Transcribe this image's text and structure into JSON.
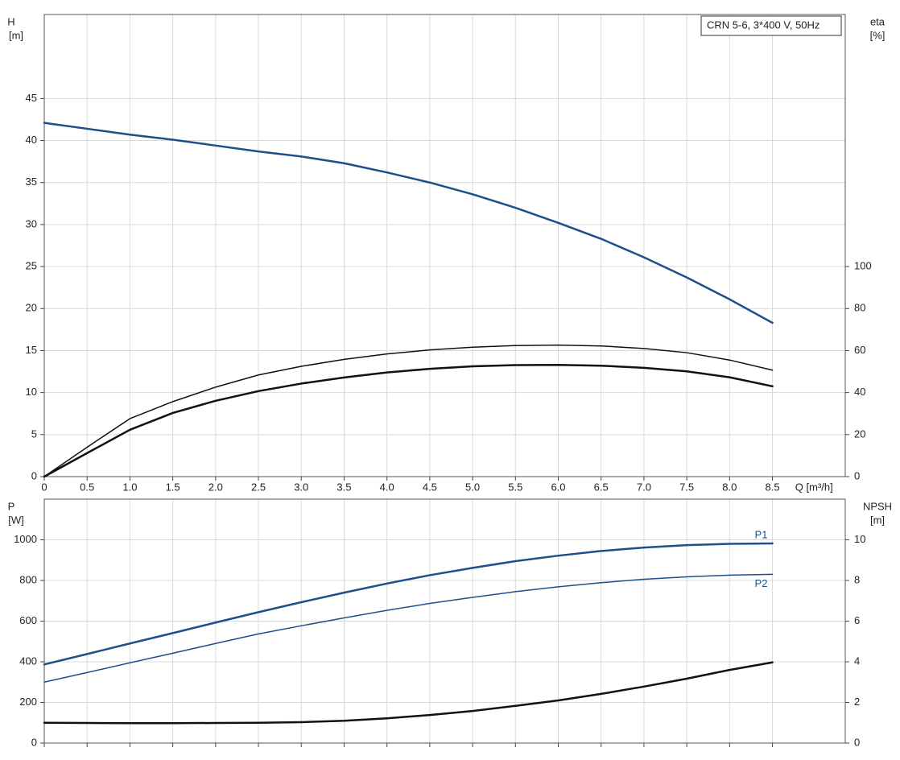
{
  "chart_data": [
    {
      "type": "line",
      "title": "CRN 5-6, 3*400 V, 50Hz",
      "ylabel": "H",
      "yunit": "[m]",
      "y2label": "eta",
      "y2unit": "[%]",
      "xlabel": "Q [m³/h]",
      "xlim": [
        0,
        9.35
      ],
      "ylim": [
        0,
        55
      ],
      "y2lim": [
        0,
        220
      ],
      "xticks": [
        0,
        0.5,
        {
          "value": 1,
          "label": "1.0"
        },
        1.5,
        {
          "value": 2,
          "label": "2.0"
        },
        2.5,
        {
          "value": 3,
          "label": "3.0"
        },
        3.5,
        {
          "value": 4,
          "label": "4.0"
        },
        4.5,
        {
          "value": 5,
          "label": "5.0"
        },
        5.5,
        {
          "value": 6,
          "label": "6.0"
        },
        6.5,
        {
          "value": 7,
          "label": "7.0"
        },
        7.5,
        {
          "value": 8,
          "label": "8.0"
        },
        8.5
      ],
      "yticks": [
        0,
        5,
        10,
        15,
        20,
        25,
        30,
        35,
        40,
        45
      ],
      "y2ticks": [
        0,
        20,
        40,
        60,
        80,
        100
      ],
      "grid": true,
      "x": [
        0,
        0.5,
        1,
        1.5,
        2,
        2.5,
        3,
        3.5,
        4,
        4.5,
        5,
        5.5,
        6,
        6.5,
        7,
        7.5,
        8,
        8.5
      ],
      "series": [
        {
          "color": "#1d4f8a",
          "linewidth": 2.5,
          "values": [
            42.1,
            41.4,
            40.7,
            40.1,
            39.4,
            38.7,
            38.1,
            37.3,
            36.2,
            35.0,
            33.6,
            32.0,
            30.2,
            28.3,
            26.1,
            23.7,
            21.1,
            18.3
          ]
        },
        {
          "color": "#111111",
          "linewidth": 1.5,
          "axis": "y2",
          "values": [
            0,
            14,
            27.6,
            35.7,
            42.6,
            48.4,
            52.5,
            55.8,
            58.4,
            60.3,
            61.6,
            62.4,
            62.6,
            62.2,
            61,
            59,
            55.5,
            50.7
          ]
        },
        {
          "color": "#111111",
          "linewidth": 2.5,
          "axis": "y2",
          "values": [
            0,
            11.2,
            22.3,
            30.3,
            36.1,
            40.7,
            44.3,
            47.2,
            49.6,
            51.3,
            52.5,
            53.1,
            53.2,
            52.8,
            51.8,
            50.1,
            47.3,
            43
          ]
        }
      ]
    },
    {
      "type": "line",
      "ylabel": "P",
      "yunit": "[W]",
      "y2label": "NPSH",
      "y2unit": "[m]",
      "xlim": [
        0,
        9.35
      ],
      "ylim": [
        0,
        1200
      ],
      "y2lim": [
        0,
        12
      ],
      "xticks": [
        0,
        0.5,
        1,
        1.5,
        2,
        2.5,
        3,
        3.5,
        4,
        4.5,
        5,
        5.5,
        6,
        6.5,
        7,
        7.5,
        8,
        8.5
      ],
      "yticks": [
        0,
        200,
        400,
        600,
        800,
        1000
      ],
      "y2ticks": [
        0,
        2,
        4,
        6,
        8,
        10
      ],
      "grid": true,
      "x": [
        0,
        0.5,
        1,
        1.5,
        2,
        2.5,
        3,
        3.5,
        4,
        4.5,
        5,
        5.5,
        6,
        6.5,
        7,
        7.5,
        8,
        8.5
      ],
      "series": [
        {
          "name": "P1",
          "color": "#1d4f8a",
          "linewidth": 2.5,
          "values": [
            387,
            438,
            490,
            541,
            593,
            644,
            693,
            740,
            785,
            826,
            862,
            895,
            922,
            945,
            962,
            974,
            980,
            982
          ]
        },
        {
          "name": "P2",
          "color": "#1d4f8a",
          "linewidth": 1.5,
          "values": [
            300,
            347,
            395,
            442,
            490,
            537,
            577,
            616,
            653,
            687,
            717,
            745,
            769,
            789,
            806,
            818,
            826,
            830
          ]
        },
        {
          "color": "#111111",
          "linewidth": 2.5,
          "axis": "y2",
          "values": [
            1.0,
            0.99,
            0.98,
            0.98,
            0.99,
            1.0,
            1.03,
            1.1,
            1.22,
            1.38,
            1.58,
            1.83,
            2.1,
            2.42,
            2.78,
            3.17,
            3.6,
            3.97
          ]
        }
      ]
    }
  ]
}
